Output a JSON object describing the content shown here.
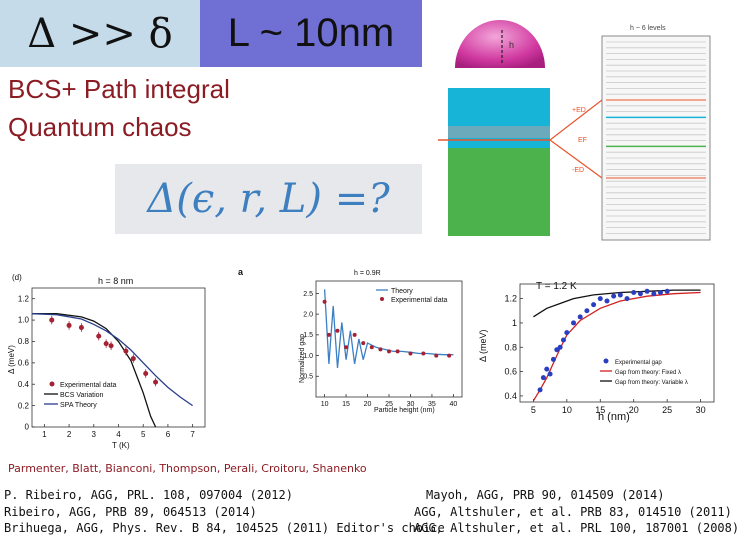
{
  "header": {
    "delta_relation": "Δ >> δ",
    "size_label": "L ~ 10nm"
  },
  "subtitle": {
    "line1": "BCS+ Path integral",
    "line2": "Quantum chaos"
  },
  "formula": "Δ(ϵ, r, L) =?",
  "diagram": {
    "h_label": "h",
    "levels_label": "h ~ 6 levels",
    "ep_label": "+ED",
    "ef_label": "EF",
    "em_label": "-ED"
  },
  "chart_left": {
    "panel": "(d)",
    "title": "h = 8 nm",
    "xlabel": "T (K)",
    "ylabel": "Δ (meV)",
    "xticks": [
      "1",
      "2",
      "3",
      "4",
      "5",
      "6",
      "7"
    ],
    "yticks": [
      "0",
      "0.2",
      "0.4",
      "0.6",
      "0.8",
      "1.0",
      "1.2"
    ],
    "legend": [
      "Experimental data",
      "BCS Variation",
      "SPA Theory"
    ]
  },
  "chart_mid": {
    "panel": "a",
    "annotation": "h = 0.9R",
    "xlabel": "Particle height (nm)",
    "ylabel": "Normalized gap",
    "xticks": [
      "10",
      "15",
      "20",
      "25",
      "30",
      "35",
      "40"
    ],
    "yticks": [
      "0.5",
      "1.0",
      "1.5",
      "2.0",
      "2.5"
    ],
    "legend": [
      "Theory",
      "Experimental data"
    ]
  },
  "chart_right": {
    "title": "T = 1.2 K",
    "xlabel": "h (nm)",
    "ylabel": "Δ (meV)",
    "xticks": [
      "5",
      "10",
      "15",
      "20",
      "25",
      "30"
    ],
    "yticks": [
      "0.4",
      "0.6",
      "0.8",
      "1",
      "1.2"
    ],
    "legend": [
      "Experimental gap",
      "Gap from theory: Fixed λ",
      "Gap from theory: Variable λ"
    ]
  },
  "chart_data": [
    {
      "type": "scatter",
      "title": "h = 8 nm",
      "xlabel": "T (K)",
      "ylabel": "Δ (meV)",
      "xlim": [
        0.5,
        7.5
      ],
      "ylim": [
        0,
        1.3
      ],
      "series": [
        {
          "name": "Experimental data",
          "x": [
            1.3,
            2.0,
            2.5,
            3.2,
            3.5,
            3.7,
            4.3,
            4.6,
            5.1,
            5.5
          ],
          "y": [
            1.0,
            0.95,
            0.93,
            0.85,
            0.78,
            0.76,
            0.71,
            0.64,
            0.5,
            0.42
          ]
        },
        {
          "name": "BCS Variation",
          "x": [
            0.5,
            1.5,
            2.5,
            3.0,
            3.5,
            4.0,
            4.5,
            5.0,
            5.3,
            5.5
          ],
          "y": [
            1.06,
            1.06,
            1.03,
            0.99,
            0.92,
            0.8,
            0.62,
            0.32,
            0.1,
            0.0
          ]
        },
        {
          "name": "SPA Theory",
          "x": [
            0.5,
            1.5,
            2.5,
            3.0,
            3.5,
            4.0,
            4.5,
            5.0,
            5.5,
            6.0,
            6.5,
            7.0
          ],
          "y": [
            1.06,
            1.05,
            1.01,
            0.96,
            0.9,
            0.82,
            0.72,
            0.6,
            0.48,
            0.37,
            0.28,
            0.2
          ]
        }
      ]
    },
    {
      "type": "line",
      "xlabel": "Particle height (nm)",
      "ylabel": "Normalized gap",
      "xlim": [
        8,
        42
      ],
      "ylim": [
        0,
        2.8
      ],
      "series": [
        {
          "name": "Theory",
          "x": [
            10,
            11,
            12,
            13,
            14,
            15,
            16,
            17,
            18,
            19,
            20,
            22,
            24,
            26,
            28,
            30,
            32,
            34,
            36,
            38,
            40
          ],
          "y": [
            2.6,
            0.8,
            2.2,
            0.7,
            1.8,
            0.9,
            1.6,
            0.8,
            1.4,
            0.9,
            1.3,
            1.2,
            1.15,
            1.1,
            1.1,
            1.08,
            1.05,
            1.05,
            1.03,
            1.02,
            1.02
          ]
        },
        {
          "name": "Experimental data",
          "x": [
            10,
            11,
            13,
            15,
            17,
            19,
            21,
            23,
            25,
            27,
            30,
            33,
            36,
            39
          ],
          "y": [
            2.3,
            1.5,
            1.6,
            1.2,
            1.5,
            1.3,
            1.2,
            1.15,
            1.1,
            1.1,
            1.05,
            1.05,
            1.0,
            1.0
          ]
        }
      ]
    },
    {
      "type": "scatter",
      "title": "T = 1.2 K",
      "xlabel": "h (nm)",
      "ylabel": "Δ (meV)",
      "xlim": [
        3,
        32
      ],
      "ylim": [
        0.35,
        1.32
      ],
      "series": [
        {
          "name": "Experimental gap",
          "x": [
            6,
            6.5,
            7,
            7.5,
            8,
            8.5,
            9,
            9.5,
            10,
            11,
            12,
            13,
            14,
            15,
            16,
            17,
            18,
            19,
            20,
            21,
            22,
            23,
            24,
            25
          ],
          "y": [
            0.45,
            0.55,
            0.62,
            0.58,
            0.7,
            0.78,
            0.8,
            0.86,
            0.92,
            1.0,
            1.05,
            1.1,
            1.15,
            1.2,
            1.18,
            1.22,
            1.23,
            1.2,
            1.25,
            1.24,
            1.26,
            1.24,
            1.25,
            1.26
          ]
        },
        {
          "name": "Gap from theory: Fixed λ",
          "x": [
            5,
            6,
            7,
            8,
            9,
            10,
            12,
            15,
            18,
            22,
            26,
            30
          ],
          "y": [
            0.36,
            0.45,
            0.55,
            0.67,
            0.79,
            0.9,
            1.02,
            1.12,
            1.18,
            1.22,
            1.24,
            1.25
          ]
        },
        {
          "name": "Gap from theory: Variable λ",
          "x": [
            5,
            7,
            9,
            11,
            14,
            18,
            22,
            26,
            30
          ],
          "y": [
            1.05,
            1.12,
            1.16,
            1.2,
            1.23,
            1.25,
            1.26,
            1.27,
            1.27
          ]
        }
      ]
    }
  ],
  "credits": "Parmenter, Blatt, Bianconi, Thompson, Perali, Croitoru, Shanenko",
  "references_left": [
    "P. Ribeiro, AGG, PRL. 108, 097004 (2012)",
    "Ribeiro, AGG, PRB 89, 064513 (2014)",
    "Brihuega, AGG, Phys. Rev. B 84, 104525 (2011) Editor's choice"
  ],
  "references_right": [
    "Mayoh, AGG, PRB 90, 014509 (2014)",
    "AGG, Altshuler, et al. PRB  83, 014510 (2011)",
    "AGG, Altshuler, et al. PRL 100, 187001 (2008)"
  ],
  "colors": {
    "delta_box": "#c5dbe9",
    "size_box": "#6f6fd4",
    "title_text": "#8b1c24",
    "formula_text": "#3e7fbf",
    "band_top": "#18b4d8",
    "band_bottom": "#4cb24c",
    "arrow": "#e8552b"
  }
}
